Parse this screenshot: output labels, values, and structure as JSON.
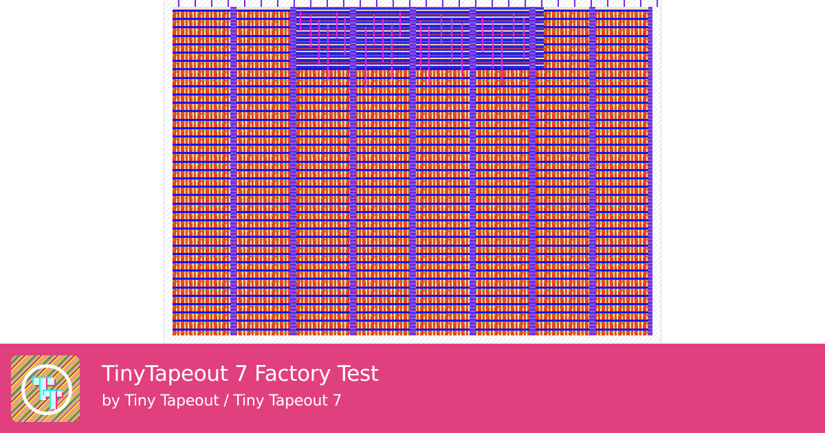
{
  "project": {
    "title": "TinyTapeout 7 Factory Test",
    "byline": "by Tiny Tapeout / Tiny Tapeout 7",
    "logo_icon": "tinytapeout-logo-icon"
  },
  "layout_image": {
    "description": "GDS layout render of chip tile",
    "icon": "chip-layout-image"
  },
  "colors": {
    "banner": "#e0407e",
    "power_rail": "#1414ee",
    "power_stripe": "#7a3af0",
    "cell_fill": "#e8401c",
    "routing_metal": "#ee22ee",
    "text": "#ffffff"
  }
}
